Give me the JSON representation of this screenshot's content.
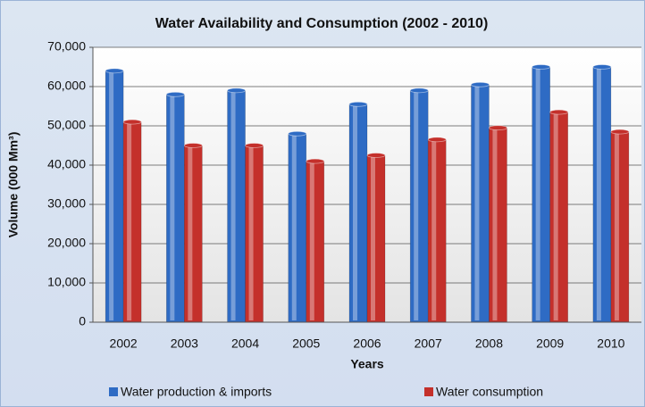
{
  "chart_data": {
    "type": "bar",
    "title": "Water Availability and Consumption (2002 - 2010)",
    "x_label": "Years",
    "y_label": "Volume (000 Mm³)",
    "categories": [
      "2002",
      "2003",
      "2004",
      "2005",
      "2006",
      "2007",
      "2008",
      "2009",
      "2010"
    ],
    "series": [
      {
        "name": "Water production & imports",
        "color": "#2e6bc4",
        "values": [
          64000,
          58000,
          59000,
          48000,
          55500,
          59000,
          60500,
          65000,
          65000
        ]
      },
      {
        "name": "Water consumption",
        "color": "#c4302b",
        "values": [
          51000,
          45000,
          45000,
          41000,
          42500,
          46500,
          49500,
          53500,
          48500
        ]
      }
    ],
    "ylim": [
      0,
      70000
    ],
    "yticks": [
      0,
      {
        "value": 10000,
        "label": "10,000"
      },
      {
        "value": 20000,
        "label": "20,000"
      },
      {
        "value": 30000,
        "label": "30,000"
      },
      {
        "value": 40000,
        "label": "40,000"
      },
      {
        "value": 50000,
        "label": "50,000"
      },
      {
        "value": 60000,
        "label": "60,000"
      },
      {
        "value": 70000,
        "label": "70,000"
      }
    ],
    "grid": true,
    "legend": "bottom"
  }
}
